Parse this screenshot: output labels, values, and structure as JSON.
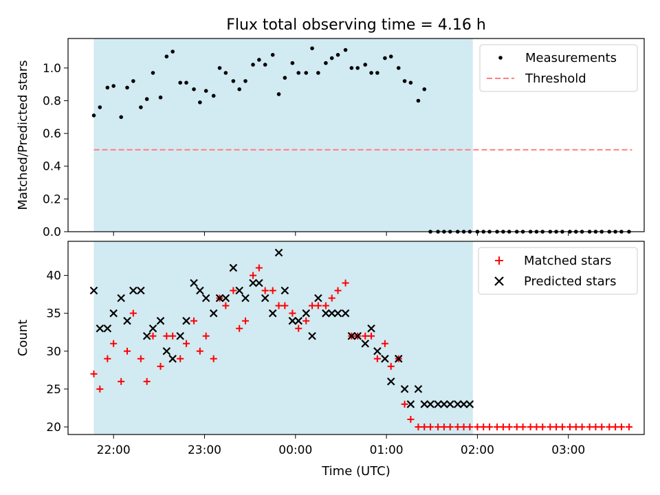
{
  "figure": {
    "title": "Flux total observing time = 4.16 h",
    "xlabel": "Time (UTC)",
    "colors": {
      "observing_band": "#add8e6",
      "measurement": "#000000",
      "threshold": "#ff7f7f",
      "matched": "#ff0000",
      "predicted": "#000000"
    }
  },
  "chart_data": [
    {
      "type": "scatter",
      "title": "Flux total observing time = 4.16 h",
      "xlabel": "",
      "ylabel": "Matched/Predicted stars",
      "xlim": [
        "21:30",
        "03:50"
      ],
      "ylim": [
        0,
        1.18
      ],
      "x_ticks": [
        "22:00",
        "23:00",
        "00:00",
        "01:00",
        "02:00",
        "03:00"
      ],
      "y_ticks": [
        "0.0",
        "0.2",
        "0.4",
        "0.6",
        "0.8",
        "1.0"
      ],
      "y_tick_values": [
        0,
        0.2,
        0.4,
        0.6,
        0.8,
        1.0
      ],
      "shaded_interval": [
        "21:47",
        "01:57"
      ],
      "legend": {
        "position": "top-right",
        "entries": [
          "Measurements",
          "Threshold"
        ]
      },
      "threshold": {
        "name": "Threshold",
        "y": 0.5,
        "x_range": [
          "21:47",
          "03:42"
        ]
      },
      "series": [
        {
          "name": "Measurements",
          "marker": "dot",
          "x": [
            "21:47",
            "21:51",
            "21:56",
            "22:00",
            "22:05",
            "22:09",
            "22:13",
            "22:18",
            "22:22",
            "22:26",
            "22:31",
            "22:35",
            "22:39",
            "22:44",
            "22:48",
            "22:53",
            "22:57",
            "23:01",
            "23:06",
            "23:10",
            "23:14",
            "23:19",
            "23:23",
            "23:27",
            "23:32",
            "23:36",
            "23:40",
            "23:45",
            "23:49",
            "23:53",
            "23:58",
            "00:02",
            "00:07",
            "00:11",
            "00:15",
            "00:20",
            "00:24",
            "00:28",
            "00:33",
            "00:37",
            "00:41",
            "00:46",
            "00:50",
            "00:54",
            "00:59",
            "01:03",
            "01:08",
            "01:12",
            "01:16",
            "01:21",
            "01:25",
            "01:29",
            "01:34",
            "01:38",
            "01:42",
            "01:47",
            "01:51",
            "01:55",
            "02:00",
            "02:04",
            "02:08",
            "02:13",
            "02:17",
            "02:21",
            "02:26",
            "02:30",
            "02:35",
            "02:39",
            "02:43",
            "02:48",
            "02:52",
            "02:56",
            "03:01",
            "03:05",
            "03:09",
            "03:14",
            "03:18",
            "03:22",
            "03:27",
            "03:31",
            "03:35",
            "03:40"
          ],
          "y": [
            0.71,
            0.76,
            0.88,
            0.89,
            0.7,
            0.88,
            0.92,
            0.76,
            0.81,
            0.97,
            0.82,
            1.07,
            1.1,
            0.91,
            0.91,
            0.87,
            0.79,
            0.86,
            0.83,
            1.0,
            0.97,
            0.92,
            0.87,
            0.92,
            1.02,
            1.05,
            1.02,
            1.08,
            0.84,
            0.94,
            1.03,
            0.97,
            0.97,
            1.12,
            0.97,
            1.03,
            1.06,
            1.08,
            1.11,
            1.0,
            1.0,
            1.02,
            0.97,
            0.97,
            1.06,
            1.07,
            1.0,
            0.92,
            0.91,
            0.8,
            0.87,
            0,
            0,
            0,
            0,
            0,
            0,
            0,
            0,
            0,
            0,
            0,
            0,
            0,
            0,
            0,
            0,
            0,
            0,
            0,
            0,
            0,
            0,
            0,
            0,
            0,
            0,
            0,
            0,
            0,
            0,
            0
          ]
        }
      ]
    },
    {
      "type": "scatter",
      "title": "",
      "xlabel": "Time (UTC)",
      "ylabel": "Count",
      "xlim": [
        "21:30",
        "03:50"
      ],
      "ylim": [
        19,
        44.5
      ],
      "x_ticks": [
        "22:00",
        "23:00",
        "00:00",
        "01:00",
        "02:00",
        "03:00"
      ],
      "y_ticks": [
        "20",
        "25",
        "30",
        "35",
        "40"
      ],
      "y_tick_values": [
        20,
        25,
        30,
        35,
        40
      ],
      "shaded_interval": [
        "21:47",
        "01:57"
      ],
      "legend": {
        "position": "top-right",
        "entries": [
          "Matched stars",
          "Predicted stars"
        ]
      },
      "series": [
        {
          "name": "Matched stars",
          "marker": "plus",
          "x": [
            "21:47",
            "21:51",
            "21:56",
            "22:00",
            "22:05",
            "22:09",
            "22:13",
            "22:18",
            "22:22",
            "22:26",
            "22:31",
            "22:35",
            "22:39",
            "22:44",
            "22:48",
            "22:53",
            "22:57",
            "23:01",
            "23:06",
            "23:10",
            "23:14",
            "23:19",
            "23:23",
            "23:27",
            "23:32",
            "23:36",
            "23:40",
            "23:45",
            "23:49",
            "23:53",
            "23:58",
            "00:02",
            "00:07",
            "00:11",
            "00:15",
            "00:20",
            "00:24",
            "00:28",
            "00:33",
            "00:37",
            "00:41",
            "00:46",
            "00:50",
            "00:54",
            "00:59",
            "01:03",
            "01:08",
            "01:12",
            "01:16",
            "01:21",
            "01:25",
            "01:29",
            "01:34",
            "01:38",
            "01:42",
            "01:47",
            "01:51",
            "01:55",
            "02:00",
            "02:04",
            "02:08",
            "02:13",
            "02:17",
            "02:21",
            "02:26",
            "02:30",
            "02:35",
            "02:39",
            "02:43",
            "02:48",
            "02:52",
            "02:56",
            "03:01",
            "03:05",
            "03:09",
            "03:14",
            "03:18",
            "03:22",
            "03:27",
            "03:31",
            "03:35",
            "03:40"
          ],
          "y": [
            27,
            25,
            29,
            31,
            26,
            30,
            35,
            29,
            26,
            32,
            28,
            32,
            32,
            29,
            31,
            34,
            30,
            32,
            29,
            37,
            36,
            38,
            33,
            34,
            40,
            41,
            38,
            38,
            36,
            36,
            35,
            33,
            34,
            36,
            36,
            36,
            37,
            38,
            39,
            32,
            32,
            32,
            32,
            29,
            31,
            28,
            29,
            23,
            21,
            20,
            20,
            20,
            20,
            20,
            20,
            20,
            20,
            20,
            20,
            20,
            20,
            20,
            20,
            20,
            20,
            20,
            20,
            20,
            20,
            20,
            20,
            20,
            20,
            20,
            20,
            20,
            20,
            20,
            20,
            20,
            20,
            20
          ]
        },
        {
          "name": "Predicted stars",
          "marker": "x",
          "x": [
            "21:47",
            "21:51",
            "21:56",
            "22:00",
            "22:05",
            "22:09",
            "22:13",
            "22:18",
            "22:22",
            "22:26",
            "22:31",
            "22:35",
            "22:39",
            "22:44",
            "22:48",
            "22:53",
            "22:57",
            "23:01",
            "23:06",
            "23:10",
            "23:14",
            "23:19",
            "23:23",
            "23:27",
            "23:32",
            "23:36",
            "23:40",
            "23:45",
            "23:49",
            "23:53",
            "23:58",
            "00:02",
            "00:07",
            "00:11",
            "00:15",
            "00:20",
            "00:24",
            "00:28",
            "00:33",
            "00:37",
            "00:41",
            "00:46",
            "00:50",
            "00:54",
            "00:59",
            "01:03",
            "01:08",
            "01:12",
            "01:16",
            "01:21",
            "01:25",
            "01:29",
            "01:34",
            "01:38",
            "01:42",
            "01:47",
            "01:51",
            "01:55"
          ],
          "y": [
            38,
            33,
            33,
            35,
            37,
            34,
            38,
            38,
            32,
            33,
            34,
            30,
            29,
            32,
            34,
            39,
            38,
            37,
            35,
            37,
            37,
            41,
            38,
            37,
            39,
            39,
            37,
            35,
            43,
            38,
            34,
            34,
            35,
            32,
            37,
            35,
            35,
            35,
            35,
            32,
            32,
            31,
            33,
            30,
            29,
            26,
            29,
            25,
            23,
            25,
            23,
            23,
            23,
            23,
            23,
            23,
            23,
            23
          ]
        }
      ]
    }
  ]
}
